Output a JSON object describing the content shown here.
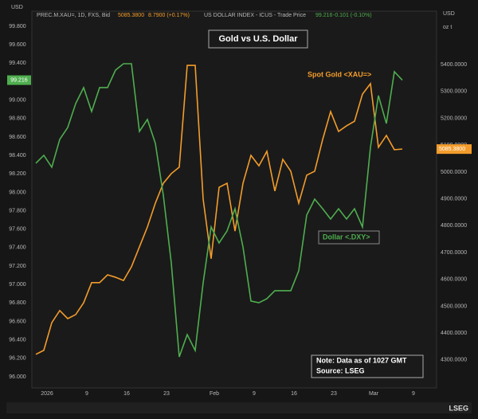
{
  "header": {
    "left_unit": "USD",
    "gold_name": "PREC.M.XAU=, 1D, FXS, Bid",
    "gold_price": "5085.3800",
    "gold_change": "8.7900 (+0.17%)",
    "dxy_name": "US DOLLAR INDEX - ICUS - Trade Price",
    "dxy_price": "99.216",
    "dxy_change": "-0.101 (-0.10%)",
    "right_unit": "USD",
    "right_unit2": "oz t"
  },
  "footer": {
    "brand": "LSEG"
  },
  "chart_data": {
    "type": "line",
    "title": "Gold vs U.S. Dollar",
    "categories": [
      null,
      "2026",
      null,
      null,
      null,
      null,
      "9",
      null,
      null,
      null,
      null,
      "16",
      null,
      null,
      null,
      null,
      "23",
      null,
      null,
      null,
      null,
      null,
      "Feb",
      null,
      null,
      null,
      null,
      "9",
      null,
      null,
      null,
      null,
      "16",
      null,
      null,
      null,
      null,
      "23",
      null,
      null,
      null,
      null,
      "Mar",
      null,
      null,
      null,
      null,
      "9"
    ],
    "series": [
      {
        "name": "Spot Gold <XAU=>",
        "color": "#f39c2b",
        "axis": "y2",
        "price_tag": "5085.3800",
        "values": [
          4321,
          4336,
          4439,
          4484,
          4454,
          4469,
          4513,
          4588,
          4588,
          4617,
          4608,
          4596,
          4647,
          4721,
          4795,
          4884,
          4958,
          4994,
          5018,
          5397,
          5397,
          4899,
          4677,
          4943,
          4958,
          4780,
          4958,
          5062,
          5023,
          5077,
          4929,
          5047,
          5003,
          4884,
          4988,
          5003,
          5121,
          5225,
          5151,
          5172,
          5189,
          5290,
          5329,
          5092,
          5136,
          5083,
          5085.38,
          null
        ]
      },
      {
        "name": "Dollar <.DXY>",
        "color": "#4fae4f",
        "values": [
          98.315,
          98.401,
          98.272,
          98.574,
          98.703,
          98.962,
          99.135,
          98.876,
          99.135,
          99.135,
          99.325,
          99.394,
          99.394,
          98.66,
          98.79,
          98.531,
          97.969,
          97.235,
          96.216,
          96.458,
          96.285,
          97.019,
          97.624,
          97.451,
          97.581,
          97.822,
          97.408,
          96.821,
          96.803,
          96.847,
          96.933,
          96.933,
          96.933,
          97.149,
          97.753,
          97.926,
          97.822,
          97.71,
          97.822,
          97.71,
          97.822,
          97.624,
          98.487,
          99.049,
          98.746,
          99.308,
          99.216,
          null
        ]
      }
    ],
    "ylim": [
      95.9,
      99.9
    ],
    "yticks": [
      {
        "value": 96.0,
        "label": "96.000"
      },
      {
        "value": 96.2,
        "label": "96.200"
      },
      {
        "value": 96.4,
        "label": "96.400"
      },
      {
        "value": 96.6,
        "label": "96.600"
      },
      {
        "value": 96.8,
        "label": "96.800"
      },
      {
        "value": 97.0,
        "label": "97.000"
      },
      {
        "value": 97.2,
        "label": "97.200"
      },
      {
        "value": 97.4,
        "label": "97.400"
      },
      {
        "value": 97.6,
        "label": "97.600"
      },
      {
        "value": 97.8,
        "label": "97.800"
      },
      {
        "value": 98.0,
        "label": "98.000"
      },
      {
        "value": 98.2,
        "label": "98.200"
      },
      {
        "value": 98.4,
        "label": "98.400"
      },
      {
        "value": 98.6,
        "label": "98.600"
      },
      {
        "value": 98.8,
        "label": "98.800"
      },
      {
        "value": 99.0,
        "label": "99.000"
      },
      {
        "value": 99.2,
        "label": "99.200"
      },
      {
        "value": 99.4,
        "label": "99.400"
      },
      {
        "value": 99.6,
        "label": "99.600"
      },
      {
        "value": 99.8,
        "label": "99.800"
      }
    ],
    "y2lim": [
      4203,
      5577
    ],
    "y2ticks": [
      {
        "value": 4300,
        "label": "4300.0000"
      },
      {
        "value": 4400,
        "label": "4400.0000"
      },
      {
        "value": 4500,
        "label": "4500.0000"
      },
      {
        "value": 4600,
        "label": "4600.0000"
      },
      {
        "value": 4700,
        "label": "4700.0000"
      },
      {
        "value": 4800,
        "label": "4800.0000"
      },
      {
        "value": 4900,
        "label": "4900.0000"
      },
      {
        "value": 5000,
        "label": "5000.0000"
      },
      {
        "value": 5100,
        "label": "5100.0000"
      },
      {
        "value": 5200,
        "label": "5200.0000"
      },
      {
        "value": 5300,
        "label": "5300.0000"
      },
      {
        "value": 5400,
        "label": "5400.0000"
      }
    ],
    "note": [
      "Note: Data as of 1027 GMT",
      "Source: LSEG"
    ],
    "grid": false
  }
}
